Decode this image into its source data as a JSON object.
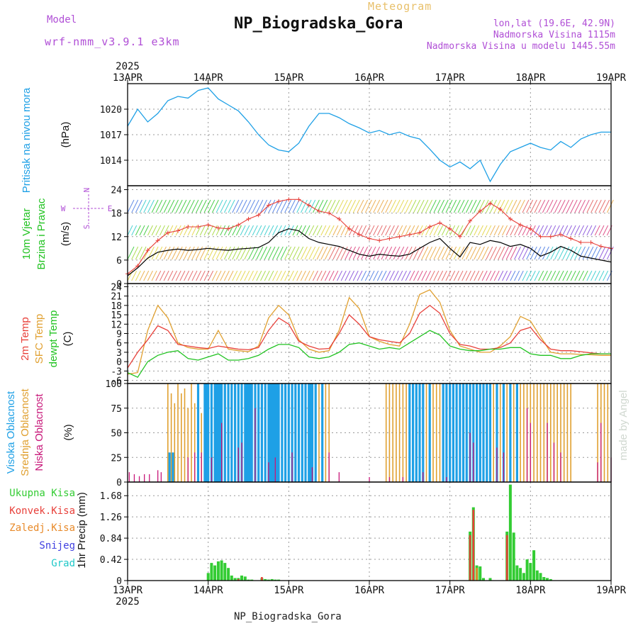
{
  "header": {
    "model_label": "Model",
    "model_name": "wrf-nmm_v3.9.1 e3km",
    "meteogram_title": "Meteogram",
    "station": "NP_Biogradska_Gora",
    "lonlat": "lon,lat (19.6E, 42.9N)",
    "elevation": "Nadmorska Visina 1115m",
    "elevation_model": "Nadmorska Visina u modelu 1445.55m",
    "watermark": "made by Angel"
  },
  "footer": {
    "station": "NP_Biogradska_Gora"
  },
  "time_axis": {
    "year": "2025",
    "ticks": [
      "13APR",
      "14APR",
      "15APR",
      "16APR",
      "17APR",
      "18APR",
      "19APR"
    ]
  },
  "colors": {
    "pressure": "#1ea0e6",
    "temp2m": "#e8403a",
    "sfc_temp": "#e0a030",
    "dewpt": "#22c322",
    "wind_speed": "#000000",
    "wind_gust": "#e8403a",
    "high_cloud": "#1ea0e6",
    "mid_cloud": "#e0a030",
    "low_cloud": "#c8187a",
    "total_precip": "#33cc33",
    "conv_precip": "#e8403a",
    "snow_precip": "#e88a2a",
    "snow": "#4040e0",
    "hail": "#20c8c8",
    "purple": "#b04fd6"
  },
  "chart_data": [
    {
      "type": "line",
      "title": "Pritisak na nivou mora",
      "ylabel": "(hPa)",
      "ylim": [
        1011,
        1023
      ],
      "yticks": [
        "1014",
        "1017",
        "1020"
      ],
      "x": [
        0,
        3,
        6,
        9,
        12,
        15,
        18,
        21,
        24,
        27,
        30,
        33,
        36,
        39,
        42,
        45,
        48,
        51,
        54,
        57,
        60,
        63,
        66,
        69,
        72,
        75,
        78,
        81,
        84,
        87,
        90,
        93,
        96,
        99,
        102,
        105,
        108,
        111,
        114,
        117,
        120,
        123,
        126,
        129,
        132,
        135,
        138,
        141,
        144
      ],
      "series": [
        {
          "name": "Pressure",
          "values": [
            1018.0,
            1020.0,
            1018.5,
            1019.5,
            1021.0,
            1021.5,
            1021.3,
            1022.2,
            1022.5,
            1021.2,
            1020.5,
            1019.8,
            1018.5,
            1017.0,
            1015.8,
            1015.2,
            1015.0,
            1016.0,
            1018.0,
            1019.5,
            1019.5,
            1019.0,
            1018.3,
            1017.8,
            1017.2,
            1017.5,
            1017.0,
            1017.3,
            1016.8,
            1016.5,
            1015.3,
            1014.0,
            1013.2,
            1013.8,
            1013.0,
            1014.0,
            1011.5,
            1013.5,
            1015.0,
            1015.5,
            1016.0,
            1015.5,
            1015.2,
            1016.2,
            1015.5,
            1016.5,
            1017.0,
            1017.3,
            1017.3
          ]
        }
      ]
    },
    {
      "type": "line",
      "title": "10m Vjetar Brzina i Pravac",
      "ylabel": "(m/s)",
      "ylim": [
        0,
        25
      ],
      "yticks": [
        "0",
        "6",
        "12",
        "18",
        "24"
      ],
      "compass": [
        "N",
        "E",
        "S",
        "W"
      ],
      "x": [
        0,
        3,
        6,
        9,
        12,
        15,
        18,
        21,
        24,
        27,
        30,
        33,
        36,
        39,
        42,
        45,
        48,
        51,
        54,
        57,
        60,
        63,
        66,
        69,
        72,
        75,
        78,
        81,
        84,
        87,
        90,
        93,
        96,
        99,
        102,
        105,
        108,
        111,
        114,
        117,
        120,
        123,
        126,
        129,
        132,
        135,
        138,
        141,
        144
      ],
      "series": [
        {
          "name": "Wind speed",
          "values": [
            2.0,
            4.0,
            6.5,
            8.0,
            8.5,
            8.8,
            8.5,
            8.7,
            9.0,
            8.7,
            8.5,
            8.8,
            9.0,
            9.2,
            10.5,
            13.0,
            14.0,
            13.5,
            11.5,
            10.5,
            10.0,
            9.5,
            8.5,
            7.5,
            7.0,
            7.5,
            7.2,
            7.0,
            7.5,
            9.0,
            10.5,
            11.5,
            9.0,
            6.8,
            10.5,
            10.0,
            11.0,
            10.5,
            9.5,
            10.0,
            9.0,
            7.0,
            8.0,
            9.5,
            8.5,
            7.0,
            6.5,
            6.0,
            5.5
          ]
        },
        {
          "name": "Wind gust",
          "values": [
            2.5,
            4.5,
            8.5,
            11.0,
            13.0,
            13.5,
            14.5,
            14.5,
            15.0,
            14.2,
            14.0,
            15.0,
            16.5,
            17.5,
            20.0,
            21.0,
            21.5,
            21.5,
            20.0,
            18.5,
            18.0,
            16.5,
            14.0,
            12.5,
            11.5,
            11.0,
            11.5,
            12.0,
            12.5,
            13.0,
            14.5,
            15.5,
            14.0,
            12.0,
            16.0,
            18.5,
            20.5,
            19.0,
            16.5,
            15.0,
            14.0,
            12.0,
            12.0,
            12.5,
            11.5,
            10.5,
            10.5,
            9.5,
            9.0
          ]
        }
      ]
    },
    {
      "type": "line",
      "title": "2m Temp / SFC Temp / dewpt Temp",
      "ylabel": "(C)",
      "ylim": [
        -7,
        25
      ],
      "yticks": [
        "-6",
        "-3",
        "0",
        "3",
        "6",
        "9",
        "12",
        "15",
        "18",
        "21",
        "24"
      ],
      "x": [
        0,
        3,
        6,
        9,
        12,
        15,
        18,
        21,
        24,
        27,
        30,
        33,
        36,
        39,
        42,
        45,
        48,
        51,
        54,
        57,
        60,
        63,
        66,
        69,
        72,
        75,
        78,
        81,
        84,
        87,
        90,
        93,
        96,
        99,
        102,
        105,
        108,
        111,
        114,
        117,
        120,
        123,
        126,
        129,
        132,
        135,
        138,
        141,
        144
      ],
      "series": [
        {
          "name": "2m Temp",
          "values": [
            -2.0,
            3.0,
            7.0,
            11.5,
            10.0,
            5.5,
            5.0,
            4.5,
            4.2,
            5.0,
            4.5,
            4.0,
            3.8,
            4.5,
            10.0,
            14.0,
            12.0,
            6.5,
            5.0,
            4.0,
            4.2,
            9.0,
            15.0,
            12.0,
            8.0,
            7.0,
            6.5,
            6.0,
            9.0,
            15.5,
            18.0,
            15.5,
            9.0,
            5.5,
            5.0,
            4.0,
            4.0,
            4.5,
            6.0,
            10.0,
            11.0,
            7.0,
            4.0,
            3.5,
            3.5,
            3.2,
            2.8,
            2.5,
            2.5
          ]
        },
        {
          "name": "SFC Temp",
          "values": [
            -4.0,
            -3.5,
            10.0,
            18.0,
            14.0,
            6.0,
            4.5,
            4.0,
            4.0,
            10.0,
            4.0,
            3.5,
            3.2,
            5.0,
            14.0,
            18.0,
            15.0,
            7.0,
            4.0,
            3.0,
            3.5,
            10.0,
            20.5,
            17.0,
            8.0,
            6.5,
            5.5,
            5.0,
            12.0,
            21.5,
            23.0,
            19.0,
            10.0,
            5.0,
            4.0,
            3.0,
            3.0,
            5.0,
            8.0,
            14.5,
            13.0,
            8.0,
            3.0,
            2.5,
            2.5,
            2.3,
            2.2,
            2.0,
            2.0
          ]
        },
        {
          "name": "dewpt Temp",
          "values": [
            -3.5,
            -5.0,
            0.0,
            2.0,
            3.0,
            3.5,
            1.0,
            0.5,
            1.5,
            2.5,
            0.5,
            0.5,
            1.0,
            2.0,
            4.0,
            5.5,
            5.5,
            4.5,
            1.5,
            1.0,
            1.5,
            3.0,
            5.5,
            6.0,
            5.0,
            4.0,
            4.5,
            4.0,
            6.0,
            8.0,
            10.0,
            8.5,
            5.0,
            4.0,
            3.5,
            3.5,
            4.0,
            4.0,
            4.5,
            4.5,
            2.5,
            2.0,
            2.0,
            1.0,
            1.0,
            2.0,
            2.5,
            2.5,
            2.5
          ]
        }
      ]
    },
    {
      "type": "bar",
      "title": "Visoka Oblacnost / Srednja Oblacnost / Niska Oblacnost",
      "ylabel": "(%)",
      "ylim": [
        0,
        100
      ],
      "yticks": [
        "0",
        "25",
        "50",
        "75",
        "100"
      ],
      "series": [
        {
          "name": "Visoka Oblacnost",
          "x": [
            12.5,
            13.5,
            21,
            23,
            23.5,
            24,
            25,
            26,
            26.5,
            27,
            27.5,
            28,
            29,
            30,
            31,
            32,
            33,
            34,
            35,
            35.5,
            36,
            36.5,
            37,
            38,
            39,
            40,
            41,
            42,
            42.5,
            43,
            43.5,
            44,
            44.5,
            45,
            46,
            47,
            48,
            49,
            50,
            51,
            52,
            53,
            54,
            54.5,
            55,
            56,
            58,
            84,
            85,
            86,
            87,
            88,
            90,
            94,
            95,
            96,
            97,
            98,
            99,
            100,
            101,
            102,
            103,
            104,
            105,
            106,
            107,
            108,
            110,
            112,
            114,
            116
          ],
          "values": [
            30,
            30,
            100,
            100,
            100,
            100,
            100,
            100,
            100,
            100,
            100,
            100,
            100,
            100,
            100,
            100,
            100,
            100,
            100,
            100,
            100,
            100,
            100,
            100,
            100,
            100,
            100,
            100,
            100,
            100,
            100,
            100,
            100,
            100,
            100,
            100,
            100,
            100,
            100,
            100,
            100,
            100,
            100,
            100,
            100,
            100,
            100,
            100,
            100,
            100,
            100,
            100,
            100,
            100,
            100,
            100,
            100,
            100,
            100,
            100,
            100,
            100,
            100,
            100,
            100,
            100,
            100,
            100,
            100,
            100,
            100,
            100
          ]
        },
        {
          "name": "Srednja Oblacnost",
          "x": [
            12,
            13,
            14,
            15,
            16,
            17,
            18,
            19,
            20,
            21,
            22,
            23,
            24,
            25,
            26,
            27,
            28,
            29,
            30,
            31,
            32,
            33,
            34,
            35,
            36,
            37,
            38,
            39,
            40,
            41,
            42,
            43,
            44,
            45,
            46,
            47,
            48,
            49,
            50,
            51,
            52,
            53,
            54,
            55,
            56,
            57,
            58,
            59,
            60,
            77,
            78,
            79,
            80,
            81,
            82,
            83,
            84,
            85,
            86,
            87,
            88,
            89,
            90,
            91,
            92,
            93,
            94,
            95,
            96,
            97,
            98,
            99,
            100,
            101,
            102,
            103,
            104,
            105,
            106,
            107,
            108,
            109,
            110,
            111,
            112,
            113,
            114,
            115,
            116,
            117,
            118,
            119,
            120,
            121,
            122,
            123,
            124,
            125,
            126,
            127,
            128,
            129,
            130,
            131,
            132,
            140,
            141,
            142,
            143
          ],
          "values": [
            100,
            90,
            80,
            100,
            90,
            95,
            75,
            100,
            80,
            60,
            70,
            100,
            100,
            90,
            100,
            100,
            100,
            100,
            100,
            100,
            100,
            100,
            100,
            100,
            100,
            100,
            100,
            100,
            100,
            100,
            100,
            100,
            100,
            100,
            100,
            100,
            100,
            100,
            100,
            100,
            100,
            100,
            100,
            100,
            100,
            100,
            100,
            100,
            100,
            100,
            100,
            100,
            100,
            100,
            100,
            100,
            100,
            100,
            100,
            100,
            100,
            100,
            100,
            100,
            100,
            100,
            100,
            100,
            100,
            100,
            100,
            100,
            100,
            100,
            100,
            100,
            100,
            100,
            100,
            100,
            100,
            100,
            100,
            100,
            100,
            100,
            100,
            100,
            100,
            100,
            100,
            100,
            100,
            100,
            100,
            100,
            100,
            100,
            100,
            100,
            100,
            100,
            100,
            100,
            100,
            100,
            100,
            100,
            100
          ]
        },
        {
          "name": "Niska Oblacnost",
          "x": [
            0.5,
            2,
            3.5,
            5,
            6.5,
            9,
            10,
            18,
            20,
            22,
            25,
            28,
            33,
            34,
            38,
            42,
            44,
            49,
            55,
            60,
            63,
            72,
            78,
            82,
            88,
            95,
            102,
            103,
            110,
            112,
            119,
            120,
            125,
            127,
            129,
            140,
            141,
            144
          ],
          "values": [
            10,
            8,
            6,
            8,
            8,
            12,
            10,
            25,
            30,
            30,
            25,
            60,
            35,
            40,
            75,
            20,
            25,
            30,
            15,
            30,
            10,
            5,
            5,
            5,
            10,
            5,
            50,
            40,
            35,
            30,
            75,
            60,
            60,
            40,
            30,
            20,
            60,
            25
          ]
        }
      ]
    },
    {
      "type": "bar",
      "title": "1hr Precip",
      "ylabel": "1hr Precip (mm)",
      "ylim": [
        0,
        1.95
      ],
      "yticks": [
        "0",
        "0.42",
        "0.84",
        "1.26",
        "1.68"
      ],
      "legend": [
        "Ukupna Kisa",
        "Konvek.Kisa",
        "Zaledj.Kisa",
        "Snijeg",
        "Grad"
      ],
      "series": [
        {
          "name": "Ukupna Kisa",
          "x": [
            24,
            25,
            26,
            27,
            28,
            29,
            30,
            31,
            32,
            33,
            34,
            35,
            36,
            37,
            40,
            41,
            42,
            43,
            44,
            45,
            102,
            103,
            104,
            105,
            106,
            108,
            113,
            114,
            115,
            116,
            117,
            118,
            119,
            120,
            121,
            122,
            123,
            124,
            125,
            126
          ],
          "values": [
            0.15,
            0.35,
            0.3,
            0.38,
            0.4,
            0.35,
            0.25,
            0.1,
            0.05,
            0.05,
            0.1,
            0.08,
            0.02,
            0.02,
            0.05,
            0.03,
            0.02,
            0.03,
            0.02,
            0.02,
            0.97,
            1.45,
            0.3,
            0.28,
            0.05,
            0.05,
            0.97,
            1.9,
            0.95,
            0.3,
            0.25,
            0.15,
            0.42,
            0.35,
            0.6,
            0.2,
            0.15,
            0.07,
            0.05,
            0.03
          ]
        },
        {
          "name": "Konvek.Kisa",
          "x": [
            33,
            40,
            102,
            103,
            113
          ],
          "values": [
            0.03,
            0.07,
            0.9,
            1.4,
            0.9
          ]
        },
        {
          "name": "Zaledj.Kisa",
          "x": [
            104
          ],
          "values": [
            0.25
          ]
        }
      ]
    }
  ]
}
